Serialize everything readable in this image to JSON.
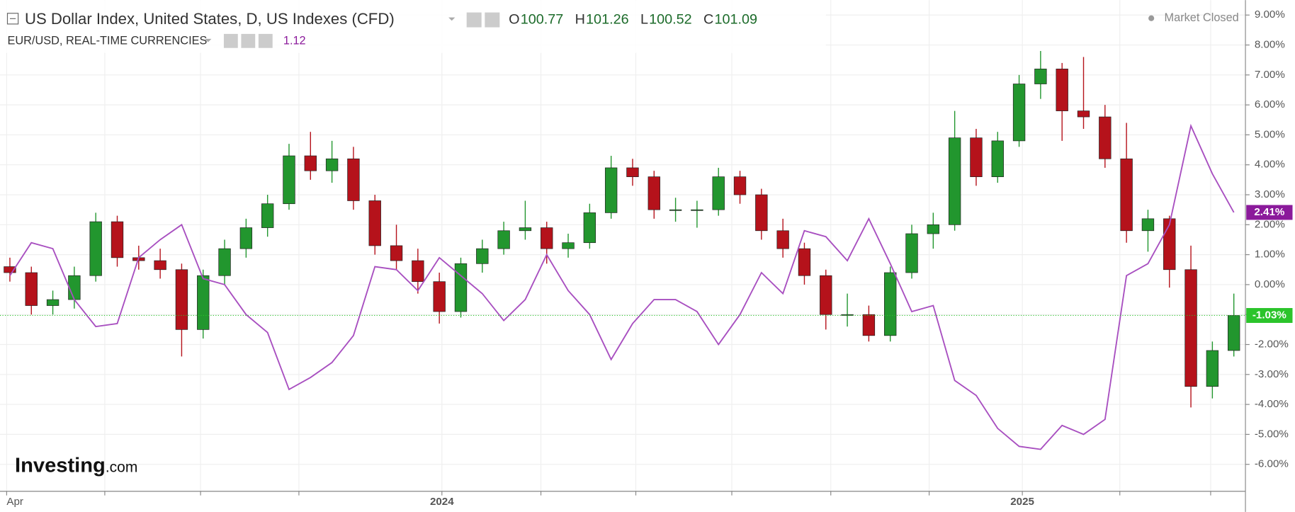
{
  "chart_data": {
    "type": "candlestick",
    "title": "US Dollar Index, United States, D, US Indexes (CFD)",
    "quote": [
      {
        "label": "O",
        "value": 100.77
      },
      {
        "label": "H",
        "value": 101.26
      },
      {
        "label": "L",
        "value": 100.52
      },
      {
        "label": "C",
        "value": 101.09
      }
    ],
    "status": "Market Closed",
    "x": [
      0,
      1,
      2,
      3,
      4,
      5,
      6,
      7,
      8,
      9,
      10,
      11,
      12,
      13,
      14,
      15,
      16,
      17,
      18,
      19,
      20,
      21,
      22,
      23,
      24,
      25,
      26,
      27,
      28,
      29,
      30,
      31,
      32,
      33,
      34,
      35,
      36,
      37,
      38,
      39,
      40,
      41,
      42,
      43,
      44,
      45,
      46,
      47,
      48,
      49,
      50,
      51,
      52,
      53,
      54,
      55,
      56,
      57
    ],
    "open": [
      0.6,
      0.4,
      -0.7,
      -0.5,
      0.3,
      2.1,
      0.9,
      0.8,
      0.5,
      -1.5,
      0.3,
      1.2,
      1.9,
      2.7,
      4.3,
      3.8,
      4.2,
      2.8,
      1.3,
      0.8,
      0.1,
      -0.9,
      0.7,
      1.2,
      1.8,
      1.9,
      1.2,
      1.4,
      2.4,
      3.9,
      3.6,
      2.5,
      2.5,
      2.5,
      3.6,
      3.0,
      1.8,
      1.2,
      0.3,
      -1.0,
      -1.0,
      -1.7,
      0.4,
      1.7,
      2.0,
      4.9,
      3.6,
      4.8,
      6.7,
      7.2,
      5.8,
      5.6,
      4.2,
      1.8,
      2.2,
      0.5,
      -3.4,
      -2.2
    ],
    "high": [
      0.9,
      0.6,
      -0.2,
      0.6,
      2.4,
      2.3,
      1.3,
      1.2,
      0.7,
      0.5,
      1.5,
      2.2,
      3.0,
      4.7,
      5.1,
      4.8,
      4.6,
      3.0,
      2.0,
      1.2,
      0.4,
      0.9,
      1.5,
      2.1,
      2.8,
      2.1,
      1.7,
      2.7,
      4.3,
      4.2,
      3.8,
      2.9,
      2.8,
      3.9,
      3.8,
      3.2,
      2.2,
      1.4,
      0.5,
      -0.3,
      -0.7,
      0.6,
      2.0,
      2.4,
      5.8,
      5.2,
      5.1,
      7.0,
      7.8,
      7.4,
      7.6,
      6.0,
      5.4,
      2.5,
      2.3,
      1.3,
      -1.9,
      -0.3
    ],
    "low": [
      0.1,
      -1.0,
      -1.0,
      -0.8,
      0.1,
      0.6,
      0.5,
      0.2,
      -2.4,
      -1.8,
      0.0,
      0.9,
      1.6,
      2.5,
      3.5,
      3.4,
      2.5,
      1.0,
      0.5,
      -0.3,
      -1.3,
      -1.1,
      0.4,
      1.0,
      1.5,
      0.7,
      0.9,
      1.2,
      2.2,
      3.3,
      2.2,
      2.1,
      1.9,
      2.3,
      2.7,
      1.5,
      0.9,
      0.0,
      -1.5,
      -1.4,
      -1.9,
      -1.9,
      0.2,
      1.2,
      1.8,
      3.3,
      3.4,
      4.6,
      6.2,
      4.8,
      5.2,
      3.9,
      1.4,
      1.1,
      -0.1,
      -4.1,
      -3.8,
      -2.4
    ],
    "close": [
      0.4,
      -0.7,
      -0.5,
      0.3,
      2.1,
      0.9,
      0.8,
      0.5,
      -1.5,
      0.3,
      1.2,
      1.9,
      2.7,
      4.3,
      3.8,
      4.2,
      2.8,
      1.3,
      0.8,
      0.1,
      -0.9,
      0.7,
      1.2,
      1.8,
      1.9,
      1.2,
      1.4,
      2.4,
      3.9,
      3.6,
      2.5,
      2.5,
      2.5,
      3.6,
      3.0,
      1.8,
      1.2,
      0.3,
      -1.0,
      -1.0,
      -1.7,
      0.4,
      1.7,
      2.0,
      4.9,
      3.6,
      4.8,
      6.7,
      7.2,
      5.8,
      5.6,
      4.2,
      1.8,
      2.2,
      0.5,
      -3.4,
      -2.2,
      -1.03
    ],
    "up_color": "#22962e",
    "down_color": "#b5121b",
    "last_color": "#2bc42b",
    "last_value_label": "-1.03%",
    "overlay": {
      "type": "line",
      "name": "EUR/USD, REAL-TIME CURRENCIES",
      "value": 1.12,
      "color": "#a84fc0",
      "values": [
        0.3,
        1.4,
        1.2,
        -0.5,
        -1.4,
        -1.3,
        0.9,
        1.5,
        2.0,
        0.2,
        0.0,
        -1.0,
        -1.6,
        -3.5,
        -3.1,
        -2.6,
        -1.7,
        0.6,
        0.5,
        -0.2,
        0.9,
        0.3,
        -0.3,
        -1.2,
        -0.5,
        1.0,
        -0.2,
        -1.0,
        -2.5,
        -1.3,
        -0.5,
        -0.5,
        -0.9,
        -2.0,
        -1.0,
        0.4,
        -0.3,
        1.8,
        1.6,
        0.8,
        2.2,
        0.7,
        -0.9,
        -0.7,
        -3.2,
        -3.7,
        -4.8,
        -5.4,
        -5.5,
        -4.7,
        -5.0,
        -4.5,
        0.3,
        0.7,
        2.0,
        5.3,
        3.7,
        2.41
      ],
      "last_value_label": "2.41%"
    },
    "xlim": [
      -0.46,
      57.54
    ],
    "xticks": [
      {
        "value": -0.15,
        "label": "Apr"
      },
      {
        "value": 4.42,
        "label": null
      },
      {
        "value": 8.88,
        "label": null
      },
      {
        "value": 13.46,
        "label": null
      },
      {
        "value": 20.12,
        "label": "2024"
      },
      {
        "value": 24.73,
        "label": null
      },
      {
        "value": 29.15,
        "label": null
      },
      {
        "value": 33.62,
        "label": null
      },
      {
        "value": 38.23,
        "label": null
      },
      {
        "value": 42.81,
        "label": null
      },
      {
        "value": 47.15,
        "label": "2025"
      },
      {
        "value": 51.69,
        "label": null
      },
      {
        "value": 55.92,
        "label": null
      }
    ],
    "ylim": [
      -6.9,
      9.5
    ],
    "yticks": [
      {
        "value": 9,
        "label": "9.00%"
      },
      {
        "value": 8,
        "label": "8.00%"
      },
      {
        "value": 7,
        "label": "7.00%"
      },
      {
        "value": 6,
        "label": "6.00%"
      },
      {
        "value": 5,
        "label": "5.00%"
      },
      {
        "value": 4,
        "label": "4.00%"
      },
      {
        "value": 3,
        "label": "3.00%"
      },
      {
        "value": 2,
        "label": "2.00%"
      },
      {
        "value": 1,
        "label": "1.00%"
      },
      {
        "value": 0,
        "label": "0.00%"
      },
      {
        "value": -1,
        "label": "-1.00%"
      },
      {
        "value": -2,
        "label": "-2.00%"
      },
      {
        "value": -3,
        "label": "-3.00%"
      },
      {
        "value": -4,
        "label": "-4.00%"
      },
      {
        "value": -5,
        "label": "-5.00%"
      },
      {
        "value": -6,
        "label": "-6.00%"
      }
    ],
    "grid": true,
    "watermark": "Investing",
    "watermark_suffix": ".com"
  }
}
